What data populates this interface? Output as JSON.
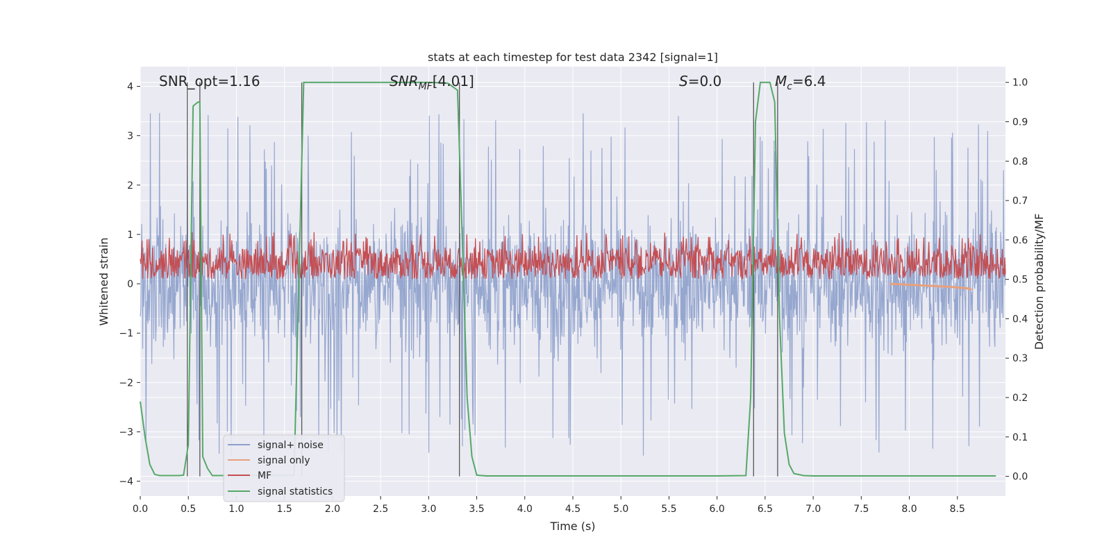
{
  "chart_data": {
    "type": "line",
    "title": "stats at each timestep for test data 2342 [signal=1]",
    "xlabel": "Time (s)",
    "ylabel_left": "Whitened strain",
    "ylabel_right": "Detection probability/MF",
    "xlim": [
      0.0,
      9.0
    ],
    "ylim_left": [
      -4.3,
      4.4
    ],
    "ylim_right": [
      -0.05,
      1.04
    ],
    "xticks": [
      0.0,
      0.5,
      1.0,
      1.5,
      2.0,
      2.5,
      3.0,
      3.5,
      4.0,
      4.5,
      5.0,
      5.5,
      6.0,
      6.5,
      7.0,
      7.5,
      8.0,
      8.5
    ],
    "xtick_labels": [
      "0.0",
      "0.5",
      "1.0",
      "1.5",
      "2.0",
      "2.5",
      "3.0",
      "3.5",
      "4.0",
      "4.5",
      "5.0",
      "5.5",
      "6.0",
      "6.5",
      "7.0",
      "7.5",
      "8.0",
      "8.5"
    ],
    "yticks_left": [
      4,
      3,
      2,
      1,
      0,
      -1,
      -2,
      -3,
      -4
    ],
    "ytick_labels_left": [
      "4",
      "3",
      "2",
      "1",
      "0",
      "−1",
      "−2",
      "−3",
      "−4"
    ],
    "yticks_right": [
      1.0,
      0.9,
      0.8,
      0.7,
      0.6,
      0.5,
      0.4,
      0.3,
      0.2,
      0.1,
      0.0
    ],
    "ytick_labels_right": [
      "1.0",
      "0.9",
      "0.8",
      "0.7",
      "0.6",
      "0.5",
      "0.4",
      "0.3",
      "0.2",
      "0.1",
      "0.0"
    ],
    "annotations": {
      "snr_opt": "SNR_opt=1.16",
      "snr_mf": "[4.01]",
      "s_value": "=0.0",
      "mc_value": "=6.4"
    },
    "legend": {
      "position": "lower-left",
      "items": [
        "signal+ noise",
        "signal only",
        "MF",
        "signal statistics"
      ]
    },
    "colors": {
      "noise": "#8da0cb",
      "signal": "#e8a07c",
      "mf": "#c44e52",
      "stat": "#55a868",
      "vline": "#555555",
      "plot_bg": "#eaeaf2",
      "grid": "#ffffff"
    },
    "series": [
      {
        "name": "signal+ noise",
        "description": "whitened strain, dense random fluctuations",
        "typical_range": [
          -1.6,
          1.6
        ],
        "extreme_range": [
          -4.0,
          4.0
        ]
      },
      {
        "name": "signal only",
        "x": [
          7.8,
          8.0,
          8.2,
          8.4,
          8.6,
          8.65
        ],
        "y": [
          0.0,
          -0.02,
          -0.04,
          -0.06,
          -0.09,
          -0.12
        ]
      },
      {
        "name": "MF",
        "description": "matched-filter output on right axis",
        "typical_range": [
          0.5,
          0.58
        ],
        "extreme_range": [
          0.5,
          0.62
        ]
      },
      {
        "name": "signal statistics",
        "x": [
          0.0,
          0.05,
          0.1,
          0.15,
          0.2,
          0.3,
          0.4,
          0.45,
          0.5,
          0.55,
          0.6,
          0.62,
          0.65,
          0.7,
          0.75,
          0.8,
          0.9,
          1.0,
          1.2,
          1.5,
          1.6,
          1.65,
          1.7,
          1.75,
          1.8,
          2.0,
          2.5,
          3.0,
          3.2,
          3.3,
          3.35,
          3.4,
          3.45,
          3.5,
          3.6,
          4.0,
          5.0,
          6.0,
          6.3,
          6.35,
          6.4,
          6.45,
          6.5,
          6.55,
          6.6,
          6.65,
          6.7,
          6.75,
          6.8,
          6.9,
          7.0,
          8.0,
          8.9
        ],
        "y": [
          0.19,
          0.1,
          0.03,
          0.005,
          0.002,
          0.002,
          0.002,
          0.003,
          0.08,
          0.94,
          0.95,
          0.95,
          0.05,
          0.02,
          0.002,
          0.002,
          0.002,
          0.002,
          0.002,
          0.002,
          0.003,
          0.5,
          1.0,
          1.0,
          1.0,
          1.0,
          1.0,
          1.0,
          0.998,
          0.98,
          0.6,
          0.2,
          0.05,
          0.003,
          0.001,
          0.001,
          0.001,
          0.001,
          0.002,
          0.2,
          0.9,
          1.0,
          1.0,
          1.0,
          0.95,
          0.4,
          0.11,
          0.03,
          0.007,
          0.002,
          0.001,
          0.001,
          0.001
        ]
      }
    ],
    "vertical_lines": [
      0.49,
      0.62,
      1.68,
      3.32,
      6.38,
      6.63
    ]
  }
}
